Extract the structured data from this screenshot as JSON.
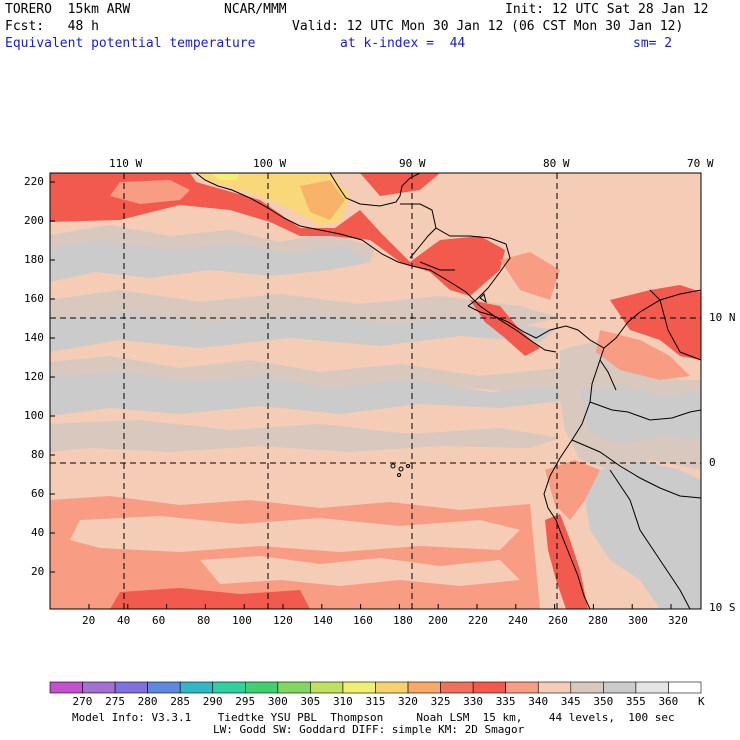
{
  "header": {
    "model": "TORERO  15km ARW",
    "center": "NCAR/MMM",
    "init": "Init: 12 UTC Sat 28 Jan 12",
    "fcst": "Fcst:   48 h",
    "valid": "Valid: 12 UTC Mon 30 Jan 12 (06 CST Mon 30 Jan 12)",
    "field": "Equivalent potential temperature",
    "level": "at k-index =  44",
    "smooth": "sm= 2"
  },
  "map": {
    "lon_labels": [
      "110 W",
      "100 W",
      "90 W",
      "80 W",
      "70 W"
    ],
    "lat_labels": [
      "10 N",
      "0",
      "10 S"
    ],
    "y_ticks": [
      "220",
      "200",
      "180",
      "160",
      "140",
      "120",
      "100",
      "80",
      "60",
      "40",
      "20"
    ],
    "x_ticks": [
      "20",
      "40",
      "60",
      "80",
      "100",
      "120",
      "140",
      "160",
      "180",
      "200",
      "220",
      "240",
      "260",
      "280",
      "300",
      "320"
    ],
    "colors": {
      "c320": "#f9b26a",
      "c325": "#f78760",
      "c330": "#f25a4e",
      "c335": "#f99c84",
      "c340": "#f5ccb6",
      "c345": "#d8c8bd",
      "c350": "#cbcbcb",
      "c315": "#f8d878",
      "c310": "#f4ee72"
    }
  },
  "colorbar": {
    "labels": [
      "270",
      "275",
      "280",
      "285",
      "290",
      "295",
      "300",
      "305",
      "310",
      "315",
      "320",
      "325",
      "330",
      "335",
      "340",
      "345",
      "350",
      "355",
      "360"
    ],
    "unit": "K",
    "colors": [
      "#c250d0",
      "#a370d8",
      "#8070e0",
      "#6088e0",
      "#30b8c8",
      "#30d0a0",
      "#40d070",
      "#80d860",
      "#c0e060",
      "#f0f070",
      "#f8d070",
      "#f8a868",
      "#f07058",
      "#f25a4e",
      "#f99c84",
      "#f5ccb6",
      "#d8c8bd",
      "#cbcbcb",
      "#e4e4e4",
      "#ffffff"
    ]
  },
  "footer": {
    "line1": "Model Info: V3.3.1    Tiedtke YSU PBL  Thompson     Noah LSM  15 km,    44 levels,  100 sec",
    "line2": "LW: Godd SW: Goddard DIFF: simple KM: 2D Smagor"
  }
}
